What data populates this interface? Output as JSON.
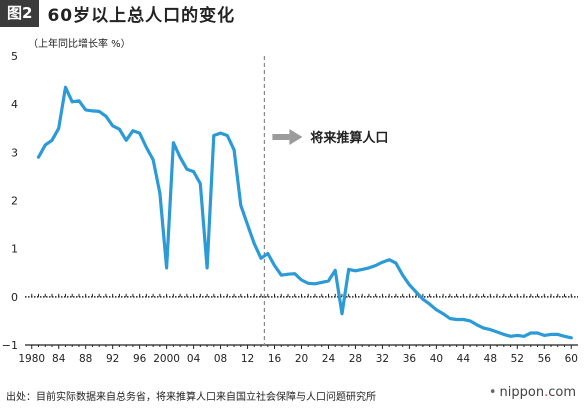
{
  "header": {
    "badge": "图2",
    "title": "60岁以上总人口的变化"
  },
  "footer": {
    "source": "出处：目前实际数据来自总务省，将来推算人口来自国立社会保障与人口问题研究所"
  },
  "brand": {
    "mark": "•",
    "name": "nippon",
    "dot": ".",
    "tld": "com"
  },
  "colors": {
    "line": "#2b9ad6",
    "arrow": "#9b9b9b",
    "divider": "#888888",
    "axis": "#222222"
  },
  "chart_data": {
    "type": "line",
    "ylabel": "（上年同比增长率 %）",
    "xlabel": "",
    "ylim": [
      -1,
      5
    ],
    "xlim": [
      1979,
      2061
    ],
    "yticks": [
      -1,
      0,
      1,
      2,
      3,
      4,
      5
    ],
    "xticks": [
      {
        "x": 1980,
        "label": "1980"
      },
      {
        "x": 1984,
        "label": "84"
      },
      {
        "x": 1988,
        "label": "88"
      },
      {
        "x": 1992,
        "label": "92"
      },
      {
        "x": 1996,
        "label": "96"
      },
      {
        "x": 2000,
        "label": "2000"
      },
      {
        "x": 2004,
        "label": "04"
      },
      {
        "x": 2008,
        "label": "08"
      },
      {
        "x": 2012,
        "label": "12"
      },
      {
        "x": 2016,
        "label": "16"
      },
      {
        "x": 2020,
        "label": "20"
      },
      {
        "x": 2024,
        "label": "24"
      },
      {
        "x": 2028,
        "label": "28"
      },
      {
        "x": 2032,
        "label": "32"
      },
      {
        "x": 2036,
        "label": "36"
      },
      {
        "x": 2040,
        "label": "40"
      },
      {
        "x": 2044,
        "label": "44"
      },
      {
        "x": 2048,
        "label": "48"
      },
      {
        "x": 2052,
        "label": "52"
      },
      {
        "x": 2056,
        "label": "56"
      },
      {
        "x": 2060,
        "label": "60"
      }
    ],
    "divider_x": 2014.5,
    "annotation": "将来推算人口",
    "grid": false,
    "series": [
      {
        "x": [
          1981,
          1982,
          1983,
          1984,
          1985,
          1986,
          1987,
          1988,
          1989,
          1990,
          1991,
          1992,
          1993,
          1994,
          1995,
          1996,
          1997,
          1998,
          1999,
          2000,
          2001,
          2002,
          2003,
          2004,
          2005,
          2006,
          2007,
          2008,
          2009,
          2010,
          2011,
          2012,
          2013,
          2014,
          2015,
          2016,
          2017,
          2018,
          2019,
          2020,
          2021,
          2022,
          2023,
          2024,
          2025,
          2026,
          2027,
          2028,
          2029,
          2030,
          2031,
          2032,
          2033,
          2034,
          2035,
          2036,
          2037,
          2038,
          2039,
          2040,
          2041,
          2042,
          2043,
          2044,
          2045,
          2046,
          2047,
          2048,
          2049,
          2050,
          2051,
          2052,
          2053,
          2054,
          2055,
          2056,
          2057,
          2058,
          2059,
          2060
        ],
        "values": [
          2.9,
          3.15,
          3.25,
          3.5,
          4.35,
          4.05,
          4.07,
          3.88,
          3.86,
          3.85,
          3.75,
          3.55,
          3.48,
          3.25,
          3.45,
          3.4,
          3.1,
          2.85,
          2.15,
          0.6,
          3.2,
          2.9,
          2.65,
          2.6,
          2.35,
          0.6,
          3.35,
          3.4,
          3.35,
          3.05,
          1.9,
          1.5,
          1.1,
          0.8,
          0.9,
          0.65,
          0.45,
          0.47,
          0.48,
          0.35,
          0.28,
          0.27,
          0.3,
          0.33,
          0.55,
          -0.35,
          0.57,
          0.54,
          0.57,
          0.6,
          0.65,
          0.72,
          0.77,
          0.7,
          0.45,
          0.25,
          0.1,
          -0.05,
          -0.15,
          -0.27,
          -0.35,
          -0.45,
          -0.47,
          -0.47,
          -0.5,
          -0.58,
          -0.65,
          -0.68,
          -0.73,
          -0.78,
          -0.82,
          -0.8,
          -0.82,
          -0.75,
          -0.75,
          -0.8,
          -0.78,
          -0.78,
          -0.82,
          -0.85
        ]
      }
    ]
  }
}
